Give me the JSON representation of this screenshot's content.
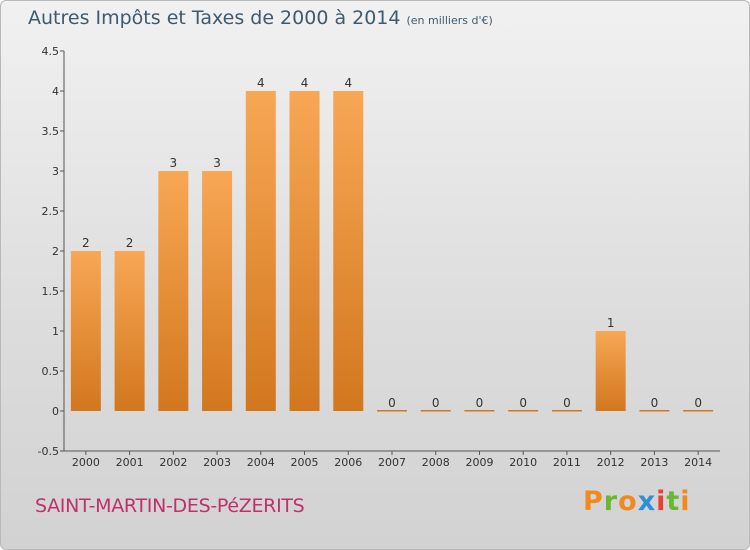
{
  "chart_data": {
    "type": "bar",
    "title": "Autres Impôts et Taxes de 2000 à 2014",
    "unit": "(en milliers d'€)",
    "categories": [
      "2000",
      "2001",
      "2002",
      "2003",
      "2004",
      "2005",
      "2006",
      "2007",
      "2008",
      "2009",
      "2010",
      "2011",
      "2012",
      "2013",
      "2014"
    ],
    "values": [
      2,
      2,
      3,
      3,
      4,
      4,
      4,
      0,
      0,
      0,
      0,
      0,
      1,
      0,
      0
    ],
    "data_labels": [
      "2",
      "2",
      "3",
      "3",
      "4",
      "4",
      "4",
      "0",
      "0",
      "0",
      "0",
      "0",
      "1",
      "0",
      "0"
    ],
    "yticks": [
      "-0.5",
      "0",
      "0.5",
      "1",
      "1.5",
      "2",
      "2.5",
      "3",
      "3.5",
      "4",
      "4.5"
    ],
    "ylim": [
      -0.5,
      4.5
    ],
    "grid": false,
    "bar_color_top": "#f8a755",
    "bar_color_bottom": "#d2771e"
  },
  "footer": {
    "place": "SAINT-MARTIN-DES-PéZERITS",
    "brand": [
      "P",
      "r",
      "o",
      "x",
      "i",
      "t",
      "i"
    ],
    "brand_colors": [
      "#f08a1c",
      "#67b832",
      "#f08a1c",
      "#2d8fd5",
      "#e8422f",
      "#67b832",
      "#f08a1c"
    ]
  }
}
